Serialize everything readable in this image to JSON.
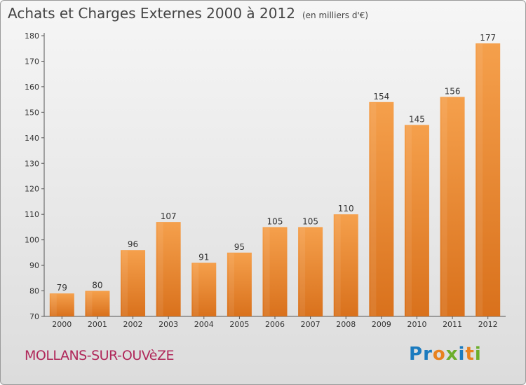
{
  "header": {
    "title": "Achats et Charges Externes 2000 à 2012",
    "unit": "(en milliers d'€)"
  },
  "footer": {
    "commune": "MOLLANS-SUR-OUVèZE",
    "logo_letters": [
      "P",
      "r",
      "o",
      "x",
      "i",
      "t",
      "i"
    ],
    "logo_colors": [
      "#1b7bbf",
      "#1b7bbf",
      "#e8821e",
      "#6cae2b",
      "#1b7bbf",
      "#e8821e",
      "#6cae2b"
    ]
  },
  "chart_data": {
    "type": "bar",
    "title": "Achats et Charges Externes 2000 à 2012",
    "categories": [
      "2000",
      "2001",
      "2002",
      "2003",
      "2004",
      "2005",
      "2006",
      "2007",
      "2008",
      "2009",
      "2010",
      "2011",
      "2012"
    ],
    "values": [
      79,
      80,
      96,
      107,
      91,
      95,
      105,
      105,
      110,
      154,
      145,
      156,
      177
    ],
    "ylim": [
      70,
      180
    ],
    "yticks": [
      70,
      80,
      90,
      100,
      110,
      120,
      130,
      140,
      150,
      160,
      170,
      180
    ],
    "grid": false,
    "colors": {
      "bar_light": "#f5a04c",
      "bar_dark": "#d9711c",
      "axis": "#555555"
    }
  }
}
